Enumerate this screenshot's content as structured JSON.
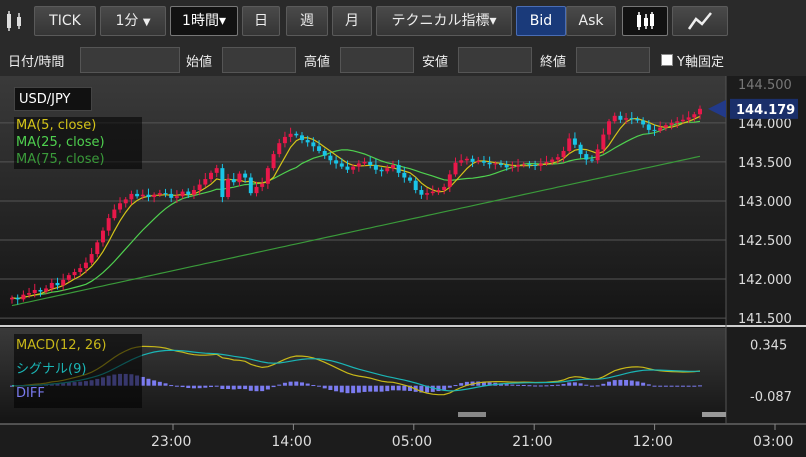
{
  "toolbar": {
    "chart_type_icon": "candlestick-chart-icon",
    "symbol_label": "TICK",
    "minute_label": "1分",
    "minute_caret": "▼",
    "hour_label": "1時間▾",
    "day_label": "日",
    "week_label": "週",
    "month_label": "月",
    "technical_label": "テクニカル指標▾",
    "bid_label": "Bid",
    "ask_label": "Ask",
    "candle_icon": "candlestick-icon",
    "line_icon": "line-chart-icon"
  },
  "inputs": {
    "datetime_label": "日付/時間",
    "open_label": "始値",
    "high_label": "高値",
    "low_label": "安値",
    "close_label": "終値",
    "yaxis_fix_label": "Y軸固定",
    "datetime_value": "",
    "open_value": "",
    "high_value": "",
    "low_value": "",
    "close_value": ""
  },
  "chart_data": [
    {
      "type": "candlestick",
      "symbol": "USD/JPY",
      "current_price": "144.179",
      "y_ticks": [
        "144.500",
        "144.000",
        "143.500",
        "143.000",
        "142.500",
        "142.000",
        "141.500"
      ],
      "ylim": [
        141.45,
        144.6
      ],
      "x_ticks": [
        "23:00",
        "14:00",
        "05:00",
        "21:00",
        "12:00",
        "03:00"
      ],
      "legend": [
        "MA(5, close)",
        "MA(25, close)",
        "MA(75, close)"
      ],
      "colors": {
        "up": "#e8184a",
        "down": "#19c5e8",
        "ma5": "#d4c419",
        "ma25": "#4fd14f",
        "ma75": "#3a9a3a",
        "price_tag": "#1a2f6a"
      },
      "closes": [
        141.76,
        141.74,
        141.8,
        141.82,
        141.86,
        141.84,
        141.88,
        141.95,
        141.92,
        141.99,
        142.05,
        142.09,
        142.14,
        142.21,
        142.32,
        142.47,
        142.62,
        142.78,
        142.89,
        142.97,
        143.02,
        143.09,
        143.06,
        143.08,
        143.05,
        143.08,
        143.1,
        143.09,
        143.04,
        143.06,
        143.12,
        143.08,
        143.14,
        143.21,
        143.28,
        143.36,
        143.42,
        143.05,
        143.28,
        143.24,
        143.35,
        143.3,
        143.1,
        143.18,
        143.22,
        143.42,
        143.6,
        143.74,
        143.82,
        143.86,
        143.84,
        143.78,
        143.75,
        143.7,
        143.64,
        143.58,
        143.52,
        143.48,
        143.44,
        143.4,
        143.44,
        143.48,
        143.5,
        143.46,
        143.4,
        143.38,
        143.42,
        143.46,
        143.36,
        143.3,
        143.26,
        143.14,
        143.08,
        143.1,
        143.12,
        143.14,
        143.18,
        143.34,
        143.49,
        143.52,
        143.54,
        143.5,
        143.51,
        143.49,
        143.47,
        143.48,
        143.46,
        143.43,
        143.44,
        143.46,
        143.47,
        143.46,
        143.45,
        143.48,
        143.5,
        143.53,
        143.56,
        143.64,
        143.8,
        143.72,
        143.6,
        143.53,
        143.52,
        143.66,
        143.85,
        144.02,
        144.09,
        144.04,
        144.06,
        144.05,
        144.03,
        143.98,
        143.91,
        143.9,
        143.94,
        143.97,
        144.0,
        144.02,
        144.04,
        144.07,
        144.11,
        144.18
      ]
    },
    {
      "type": "line",
      "title": "",
      "y_ticks": [
        "0.345",
        "-0.087"
      ],
      "ylim": [
        -0.12,
        0.4
      ],
      "legend": [
        "MACD(12, 26)",
        "シグナル(9)",
        "DIFF"
      ],
      "colors": {
        "macd": "#c8b819",
        "signal": "#1ab5b5",
        "diff": "#7b7bf0"
      }
    }
  ]
}
